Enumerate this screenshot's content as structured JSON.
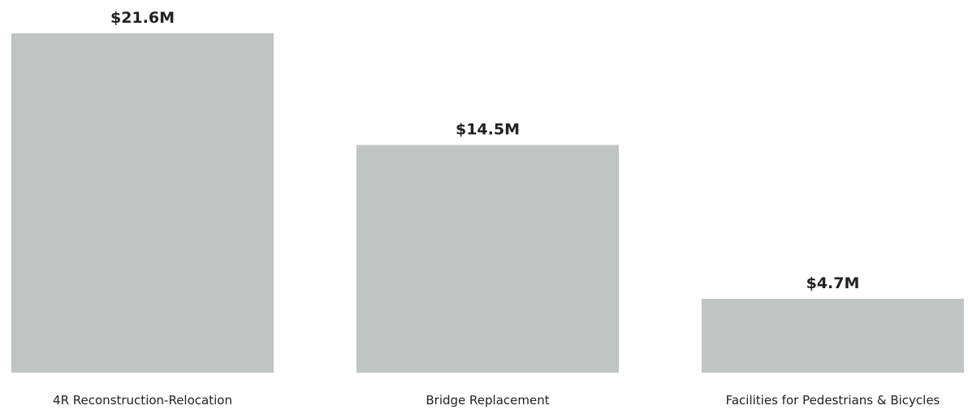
{
  "chart_data": {
    "type": "bar",
    "categories": [
      "4R Reconstruction-Relocation",
      "Bridge Replacement",
      "Facilities for Pedestrians & Bicycles"
    ],
    "values": [
      21.6,
      14.5,
      4.7
    ],
    "value_labels": [
      "$21.6M",
      "$14.5M",
      "$4.7M"
    ],
    "title": "",
    "xlabel": "",
    "ylabel": "",
    "ylim": [
      0,
      21.6
    ],
    "grid": false,
    "legend": "none",
    "bar_color": "#bfc4c4",
    "text_color": "#222222"
  }
}
